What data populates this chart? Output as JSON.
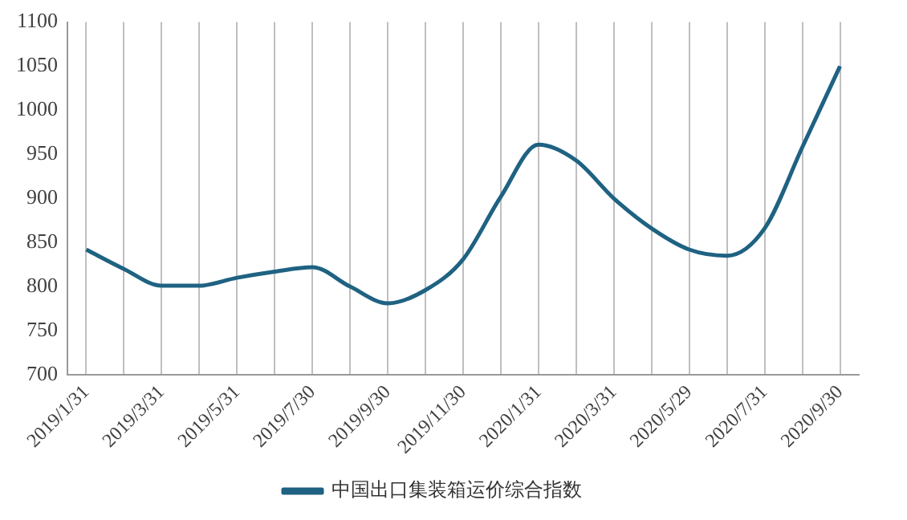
{
  "chart_data": {
    "type": "line",
    "categories": [
      "2019/1/31",
      null,
      "2019/3/31",
      null,
      "2019/5/31",
      null,
      "2019/7/30",
      null,
      "2019/9/30",
      null,
      "2019/11/30",
      null,
      "2020/1/31",
      null,
      "2020/3/31",
      null,
      "2020/5/29",
      null,
      "2020/7/31",
      null,
      "2020/9/30"
    ],
    "series": [
      {
        "name": "中国出口集装箱运价综合指数",
        "color": "#1f6282",
        "values": [
          842,
          820,
          801,
          801,
          810,
          817,
          822,
          800,
          781,
          796,
          831,
          902,
          961,
          943,
          900,
          866,
          842,
          835,
          866,
          958,
          1050
        ]
      }
    ],
    "ylim": [
      700,
      1100
    ],
    "yticks": [
      700,
      750,
      800,
      850,
      900,
      950,
      1000,
      1050,
      1100
    ],
    "grid": "x",
    "legend": "bottom",
    "marker": "none",
    "line_style": "solid"
  }
}
